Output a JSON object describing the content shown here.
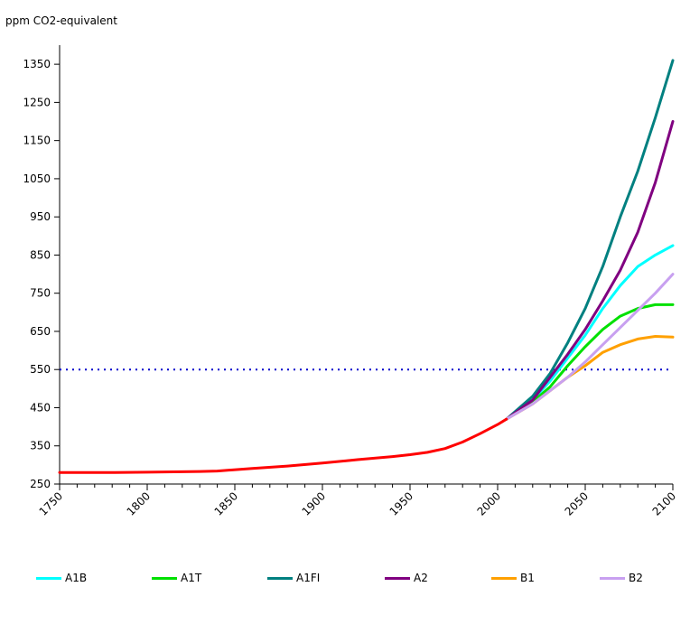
{
  "chart_data": {
    "type": "line",
    "ylabel": "ppm CO2-equivalent",
    "xlabel": "",
    "xlim": [
      1750,
      2100
    ],
    "ylim": [
      250,
      1400
    ],
    "x_ticks": [
      1750,
      1800,
      1850,
      1900,
      1950,
      2000,
      2050,
      2100
    ],
    "y_ticks": [
      250,
      350,
      450,
      550,
      650,
      750,
      850,
      950,
      1050,
      1150,
      1250,
      1350
    ],
    "grid": false,
    "legend_position": "bottom",
    "reference_line": {
      "y": 550,
      "color": "#0000cc",
      "style": "dotted"
    },
    "series": [
      {
        "name": "",
        "color": "#ff0000",
        "x": [
          1750,
          1780,
          1800,
          1830,
          1840,
          1860,
          1880,
          1900,
          1920,
          1940,
          1950,
          1960,
          1970,
          1980,
          1990,
          2000,
          2005
        ],
        "y": [
          280,
          280,
          281,
          283,
          284,
          291,
          297,
          305,
          314,
          322,
          327,
          333,
          343,
          360,
          382,
          406,
          420
        ]
      },
      {
        "name": "A1B",
        "color": "#00ffff",
        "x": [
          2005,
          2020,
          2030,
          2040,
          2050,
          2060,
          2070,
          2080,
          2090,
          2100
        ],
        "y": [
          420,
          470,
          520,
          580,
          640,
          710,
          770,
          820,
          850,
          875
        ]
      },
      {
        "name": "A1T",
        "color": "#00e000",
        "x": [
          2005,
          2020,
          2030,
          2040,
          2050,
          2060,
          2070,
          2080,
          2090,
          2100
        ],
        "y": [
          420,
          465,
          505,
          560,
          610,
          655,
          690,
          710,
          720,
          720
        ]
      },
      {
        "name": "A1FI",
        "color": "#008080",
        "x": [
          2005,
          2020,
          2030,
          2040,
          2050,
          2060,
          2070,
          2080,
          2090,
          2100
        ],
        "y": [
          420,
          480,
          540,
          620,
          710,
          820,
          950,
          1070,
          1210,
          1360
        ]
      },
      {
        "name": "A2",
        "color": "#800080",
        "x": [
          2005,
          2020,
          2030,
          2040,
          2050,
          2060,
          2070,
          2080,
          2090,
          2100
        ],
        "y": [
          420,
          470,
          530,
          590,
          655,
          730,
          810,
          910,
          1040,
          1200
        ]
      },
      {
        "name": "B1",
        "color": "#ffa000",
        "x": [
          2005,
          2020,
          2030,
          2040,
          2050,
          2060,
          2070,
          2080,
          2090,
          2100
        ],
        "y": [
          420,
          460,
          495,
          530,
          560,
          595,
          615,
          630,
          637,
          635
        ]
      },
      {
        "name": "B2",
        "color": "#c8a0f0",
        "x": [
          2005,
          2020,
          2030,
          2040,
          2050,
          2060,
          2070,
          2080,
          2090,
          2100
        ],
        "y": [
          420,
          460,
          495,
          530,
          570,
          615,
          660,
          705,
          750,
          800
        ]
      }
    ]
  },
  "legend": [
    {
      "label": "A1B",
      "color": "#00ffff"
    },
    {
      "label": "A1T",
      "color": "#00e000"
    },
    {
      "label": "A1FI",
      "color": "#008080"
    },
    {
      "label": "A2",
      "color": "#800080"
    },
    {
      "label": "B1",
      "color": "#ffa000"
    },
    {
      "label": "B2",
      "color": "#c8a0f0"
    }
  ]
}
